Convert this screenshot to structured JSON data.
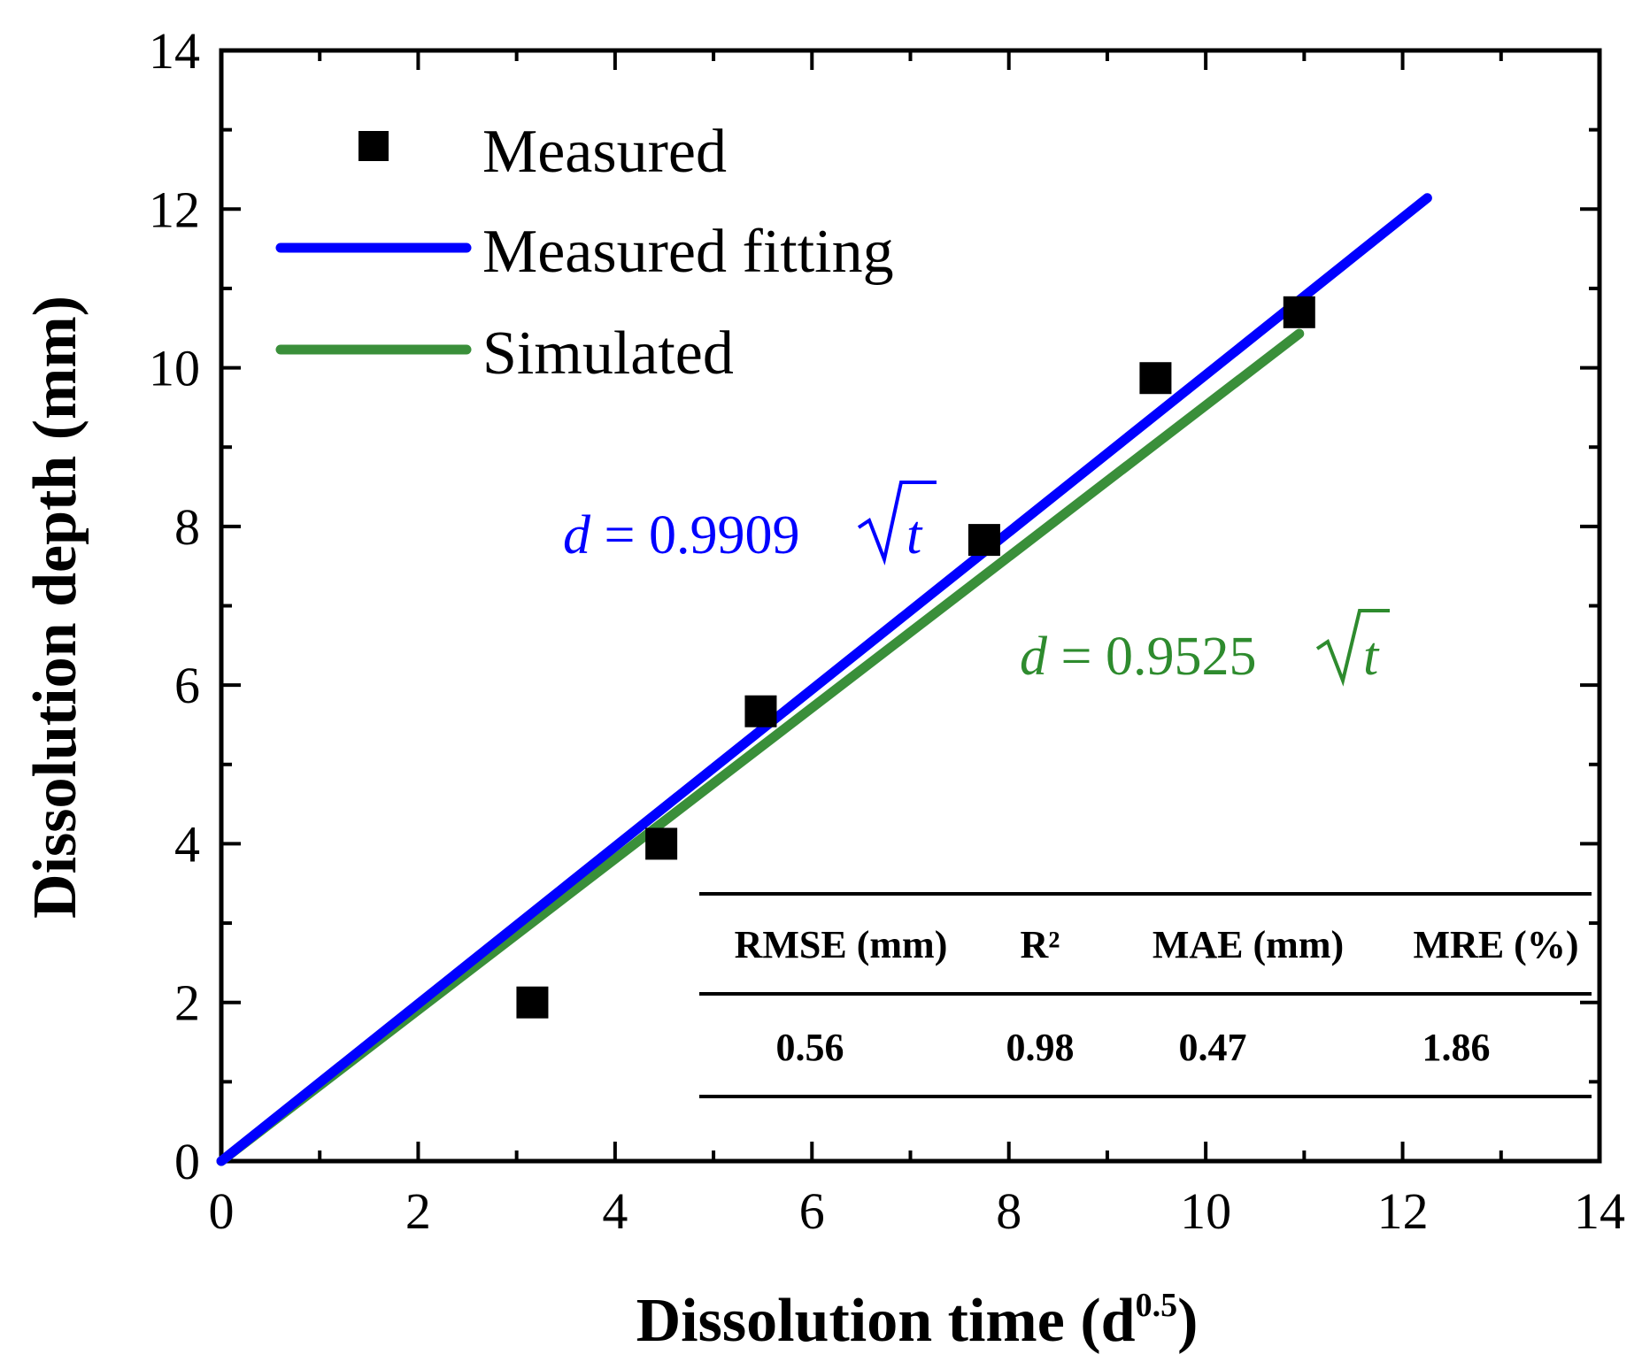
{
  "chart_data": {
    "type": "scatter",
    "xlabel_main": "Dissolution time (d",
    "xlabel_sup": "0.5",
    "xlabel_close": ")",
    "ylabel": "Dissolution depth (mm)",
    "xlim": [
      0,
      14
    ],
    "ylim": [
      0,
      14
    ],
    "xticks": [
      "0",
      "2",
      "4",
      "6",
      "8",
      "10",
      "12",
      "14"
    ],
    "yticks": [
      "0",
      "2",
      "4",
      "6",
      "8",
      "10",
      "12",
      "14"
    ],
    "legend_position": "top-left",
    "series": [
      {
        "name": "Measured",
        "kind": "scatter",
        "color": "#000000",
        "x": [
          3.16,
          4.47,
          5.48,
          7.75,
          9.49,
          10.95
        ],
        "y": [
          2.0,
          4.0,
          5.67,
          7.83,
          9.87,
          10.7
        ]
      },
      {
        "name": "Measured fitting",
        "kind": "line",
        "color": "#0000ff",
        "x": [
          0,
          12.25
        ],
        "y": [
          0,
          12.14
        ]
      },
      {
        "name": "Simulated",
        "kind": "line",
        "color": "#3a8f3a",
        "x": [
          0,
          10.95
        ],
        "y": [
          0,
          10.43
        ]
      }
    ],
    "annotations": {
      "fit_eq": {
        "var": "d",
        "eq": " = 0.9909",
        "arg": "t",
        "color": "#0000ff"
      },
      "sim_eq": {
        "var": "d",
        "eq": " = 0.9525",
        "arg": "t",
        "color": "#2e8b2e"
      }
    },
    "table": {
      "headers": [
        "RMSE (mm)",
        "R²",
        "MAE (mm)",
        "MRE (%)"
      ],
      "values": [
        "0.56",
        "0.98",
        "0.47",
        "1.86"
      ]
    }
  }
}
